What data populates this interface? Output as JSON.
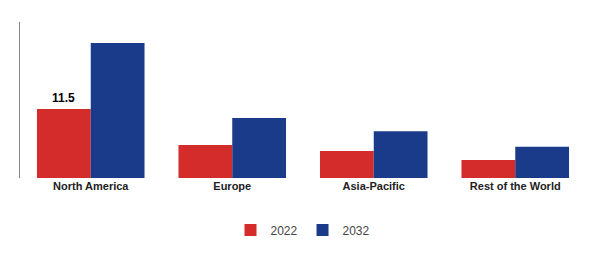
{
  "chart_data": {
    "type": "bar",
    "categories": [
      "North America",
      "Europe",
      "Asia-Pacific",
      "Rest of the World"
    ],
    "series": [
      {
        "name": "2022",
        "color": "#d42b2b",
        "values": [
          11.5,
          5.5,
          4.5,
          3.0
        ]
      },
      {
        "name": "2032",
        "color": "#1a3a8a",
        "values": [
          22.5,
          10.0,
          7.8,
          5.2
        ]
      }
    ],
    "annotations": [
      {
        "text": "11.5",
        "series": "2022",
        "category": "North America"
      }
    ],
    "ylim": [
      0,
      26
    ],
    "grid": false,
    "legend": "bottom",
    "tick_labels": "x"
  }
}
